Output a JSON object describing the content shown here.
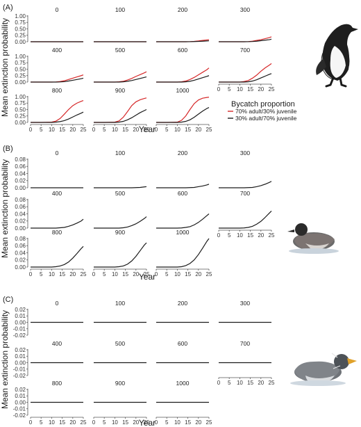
{
  "chart_data": [
    {
      "type": "line",
      "panel_label": "(A)",
      "xlabel": "Year",
      "ylabel": "Mean extinction probability",
      "xlim": [
        0,
        25
      ],
      "ylim": [
        0,
        1
      ],
      "x_ticks": [
        "0",
        "5",
        "10",
        "15",
        "20",
        "25"
      ],
      "y_ticks": [
        "0.00",
        "0.25",
        "0.50",
        "0.75",
        "1.00"
      ],
      "legend": {
        "title": "Bycatch proportion",
        "placement": "right",
        "entries": [
          {
            "label": "70% adult/30% juvenile",
            "color": "#d62728"
          },
          {
            "label": "30% adult/70% juvenile",
            "color": "#1a1a1a"
          }
        ]
      },
      "x": [
        0,
        5,
        10,
        12,
        14,
        16,
        18,
        20,
        22,
        24,
        25
      ],
      "subplots": [
        {
          "title": "0",
          "series": [
            {
              "values": [
                0,
                0,
                0,
                0,
                0,
                0,
                0,
                0,
                0,
                0,
                0
              ]
            },
            {
              "values": [
                0,
                0,
                0,
                0,
                0,
                0,
                0,
                0,
                0,
                0,
                0
              ]
            }
          ]
        },
        {
          "title": "100",
          "series": [
            {
              "values": [
                0,
                0,
                0,
                0,
                0,
                0,
                0,
                0,
                0,
                0,
                0
              ]
            },
            {
              "values": [
                0,
                0,
                0,
                0,
                0,
                0,
                0,
                0,
                0,
                0,
                0
              ]
            }
          ]
        },
        {
          "title": "200",
          "series": [
            {
              "values": [
                0,
                0,
                0,
                0,
                0,
                0.005,
                0.015,
                0.03,
                0.05,
                0.07,
                0.08
              ]
            },
            {
              "values": [
                0,
                0,
                0,
                0,
                0,
                0.002,
                0.006,
                0.012,
                0.02,
                0.03,
                0.035
              ]
            }
          ]
        },
        {
          "title": "300",
          "series": [
            {
              "values": [
                0,
                0,
                0,
                0,
                0.005,
                0.02,
                0.05,
                0.08,
                0.12,
                0.16,
                0.19
              ]
            },
            {
              "values": [
                0,
                0,
                0,
                0,
                0.002,
                0.008,
                0.02,
                0.04,
                0.06,
                0.08,
                0.1
              ]
            }
          ]
        },
        {
          "title": "400",
          "series": [
            {
              "values": [
                0,
                0,
                0,
                0.005,
                0.02,
                0.05,
                0.1,
                0.15,
                0.2,
                0.25,
                0.28
              ]
            },
            {
              "values": [
                0,
                0,
                0,
                0,
                0.005,
                0.015,
                0.04,
                0.07,
                0.1,
                0.13,
                0.15
              ]
            }
          ]
        },
        {
          "title": "500",
          "series": [
            {
              "values": [
                0,
                0,
                0,
                0.01,
                0.03,
                0.08,
                0.14,
                0.22,
                0.29,
                0.36,
                0.4
              ]
            },
            {
              "values": [
                0,
                0,
                0,
                0,
                0.01,
                0.03,
                0.06,
                0.1,
                0.14,
                0.18,
                0.2
              ]
            }
          ]
        },
        {
          "title": "600",
          "series": [
            {
              "values": [
                0,
                0,
                0,
                0.01,
                0.04,
                0.1,
                0.18,
                0.28,
                0.38,
                0.48,
                0.55
              ]
            },
            {
              "values": [
                0,
                0,
                0,
                0,
                0.01,
                0.03,
                0.07,
                0.12,
                0.17,
                0.22,
                0.25
              ]
            }
          ]
        },
        {
          "title": "700",
          "series": [
            {
              "values": [
                0,
                0,
                0,
                0.02,
                0.06,
                0.15,
                0.27,
                0.42,
                0.55,
                0.66,
                0.72
              ]
            },
            {
              "values": [
                0,
                0,
                0,
                0,
                0.01,
                0.04,
                0.09,
                0.16,
                0.23,
                0.3,
                0.33
              ]
            }
          ]
        },
        {
          "title": "800",
          "series": [
            {
              "values": [
                0,
                0,
                0.01,
                0.05,
                0.15,
                0.32,
                0.5,
                0.65,
                0.75,
                0.82,
                0.85
              ]
            },
            {
              "values": [
                0,
                0,
                0,
                0.01,
                0.03,
                0.07,
                0.13,
                0.21,
                0.29,
                0.36,
                0.4
              ]
            }
          ]
        },
        {
          "title": "900",
          "series": [
            {
              "values": [
                0,
                0,
                0.01,
                0.06,
                0.2,
                0.42,
                0.65,
                0.8,
                0.88,
                0.93,
                0.95
              ]
            },
            {
              "values": [
                0,
                0,
                0,
                0.01,
                0.04,
                0.1,
                0.18,
                0.28,
                0.38,
                0.46,
                0.5
              ]
            }
          ]
        },
        {
          "title": "1000",
          "series": [
            {
              "values": [
                0,
                0,
                0.01,
                0.08,
                0.25,
                0.5,
                0.73,
                0.87,
                0.94,
                0.97,
                0.98
              ]
            },
            {
              "values": [
                0,
                0,
                0,
                0.01,
                0.04,
                0.1,
                0.2,
                0.32,
                0.44,
                0.54,
                0.58
              ]
            }
          ]
        }
      ]
    },
    {
      "type": "line",
      "panel_label": "(B)",
      "xlabel": "Year",
      "ylabel": "Mean extinction probability",
      "xlim": [
        0,
        25
      ],
      "ylim": [
        0,
        0.08
      ],
      "x_ticks": [
        "0",
        "5",
        "10",
        "15",
        "20",
        "25"
      ],
      "y_ticks": [
        "0.00",
        "0.02",
        "0.04",
        "0.06",
        "0.08"
      ],
      "x": [
        0,
        5,
        10,
        12,
        14,
        16,
        18,
        20,
        22,
        24,
        25
      ],
      "subplots": [
        {
          "title": "0",
          "series": [
            {
              "values": [
                0,
                0,
                0,
                0,
                0,
                0,
                0,
                0,
                0,
                0,
                0
              ]
            }
          ]
        },
        {
          "title": "100",
          "series": [
            {
              "values": [
                0,
                0,
                0,
                0,
                0,
                0,
                0,
                0.0005,
                0.001,
                0.0025,
                0.003
              ]
            }
          ]
        },
        {
          "title": "200",
          "series": [
            {
              "values": [
                0,
                0,
                0,
                0,
                0,
                0.0005,
                0.001,
                0.003,
                0.005,
                0.008,
                0.01
              ]
            }
          ]
        },
        {
          "title": "300",
          "series": [
            {
              "values": [
                0,
                0,
                0,
                0,
                0.0005,
                0.001,
                0.003,
                0.006,
                0.01,
                0.015,
                0.018
              ]
            }
          ]
        },
        {
          "title": "400",
          "series": [
            {
              "values": [
                0,
                0,
                0,
                0,
                0.001,
                0.002,
                0.005,
                0.009,
                0.014,
                0.02,
                0.025
              ]
            }
          ]
        },
        {
          "title": "500",
          "series": [
            {
              "values": [
                0,
                0,
                0,
                0,
                0.001,
                0.003,
                0.007,
                0.012,
                0.019,
                0.027,
                0.032
              ]
            }
          ]
        },
        {
          "title": "600",
          "series": [
            {
              "values": [
                0,
                0,
                0,
                0.0005,
                0.002,
                0.004,
                0.009,
                0.016,
                0.025,
                0.035,
                0.04
              ]
            }
          ]
        },
        {
          "title": "700",
          "series": [
            {
              "values": [
                0,
                0,
                0,
                0.0005,
                0.002,
                0.005,
                0.011,
                0.019,
                0.03,
                0.042,
                0.048
              ]
            }
          ]
        },
        {
          "title": "800",
          "series": [
            {
              "values": [
                0,
                0,
                0,
                0.001,
                0.003,
                0.007,
                0.014,
                0.025,
                0.038,
                0.052,
                0.058
              ]
            }
          ]
        },
        {
          "title": "900",
          "series": [
            {
              "values": [
                0,
                0,
                0,
                0.001,
                0.003,
                0.008,
                0.017,
                0.03,
                0.046,
                0.062,
                0.068
              ]
            }
          ]
        },
        {
          "title": "1000",
          "series": [
            {
              "values": [
                0,
                0,
                0,
                0.001,
                0.004,
                0.01,
                0.02,
                0.035,
                0.053,
                0.072,
                0.08
              ]
            }
          ]
        }
      ]
    },
    {
      "type": "line",
      "panel_label": "(C)",
      "xlabel": "Year",
      "ylabel": "Mean extinction probability",
      "xlim": [
        0,
        25
      ],
      "ylim": [
        -0.02,
        0.02
      ],
      "x_ticks": [
        "0",
        "5",
        "10",
        "15",
        "20",
        "25"
      ],
      "y_ticks": [
        "-0.02",
        "-0.01",
        "0.00",
        "0.01",
        "0.02"
      ],
      "x": [
        0,
        25
      ],
      "subplots": [
        {
          "title": "0",
          "series": [
            {
              "values": [
                0,
                0
              ]
            }
          ]
        },
        {
          "title": "100",
          "series": [
            {
              "values": [
                0,
                0
              ]
            }
          ]
        },
        {
          "title": "200",
          "series": [
            {
              "values": [
                0,
                0
              ]
            }
          ]
        },
        {
          "title": "300",
          "series": [
            {
              "values": [
                0,
                0
              ]
            }
          ]
        },
        {
          "title": "400",
          "series": [
            {
              "values": [
                0,
                0
              ]
            }
          ]
        },
        {
          "title": "500",
          "series": [
            {
              "values": [
                0,
                0
              ]
            }
          ]
        },
        {
          "title": "600",
          "series": [
            {
              "values": [
                0,
                0
              ]
            }
          ]
        },
        {
          "title": "700",
          "series": [
            {
              "values": [
                0,
                0
              ]
            }
          ]
        },
        {
          "title": "800",
          "series": [
            {
              "values": [
                0,
                0
              ]
            }
          ]
        },
        {
          "title": "900",
          "series": [
            {
              "values": [
                0,
                0
              ]
            }
          ]
        },
        {
          "title": "1000",
          "series": [
            {
              "values": [
                0,
                0
              ]
            }
          ]
        }
      ]
    }
  ],
  "images": [
    {
      "name": "common-murre-photo"
    },
    {
      "name": "marbled-murrelet-photo"
    },
    {
      "name": "rhinoceros-auklet-photo"
    }
  ]
}
